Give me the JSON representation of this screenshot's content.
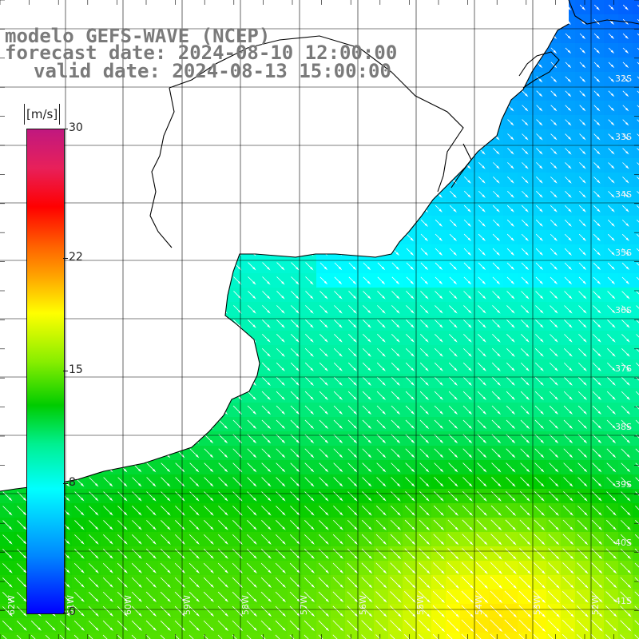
{
  "title": {
    "line1": "modelo GEFS-WAVE (NCEP)",
    "line2": "forecast date: 2024-08-10 12:00:00",
    "line3": "valid date: 2024-08-13 15:00:00"
  },
  "colorbar": {
    "unit": "[m/s]",
    "ticks": [
      "30",
      "22",
      "15",
      "8",
      "0"
    ],
    "tick_values": [
      30,
      22,
      15,
      8,
      0
    ],
    "min": 0,
    "max": 30
  },
  "map": {
    "lat_labels": [
      "32S",
      "33S",
      "34S",
      "35S",
      "36S",
      "37S",
      "38S",
      "39S",
      "40S",
      "41S"
    ],
    "lon_labels": [
      "62W",
      "61W",
      "60W",
      "59W",
      "58W",
      "57W",
      "56W",
      "55W",
      "54W",
      "53W",
      "52W",
      "51W"
    ],
    "grid_line_color": "#000000",
    "coast_color": "#000000",
    "arrow_color": "#ffffff",
    "wind_direction": "from northwest"
  },
  "chart_data": {
    "type": "heatmap",
    "title": "modelo GEFS-WAVE (NCEP)",
    "variable": "wind speed",
    "units": "[m/s]",
    "color_range": [
      0,
      30
    ],
    "latitude_range": [
      "32S",
      "41S"
    ],
    "longitude_range": [
      "62W",
      "51W"
    ],
    "observed_speed_range_m_s": [
      5,
      17
    ],
    "field": {
      "northeast_coast": "5-7",
      "rio_de_la_plata_mouth": "7-9",
      "central_offshore": "10-13",
      "southwest_shelf": "9-12",
      "southeast_corner": "15-17"
    }
  }
}
